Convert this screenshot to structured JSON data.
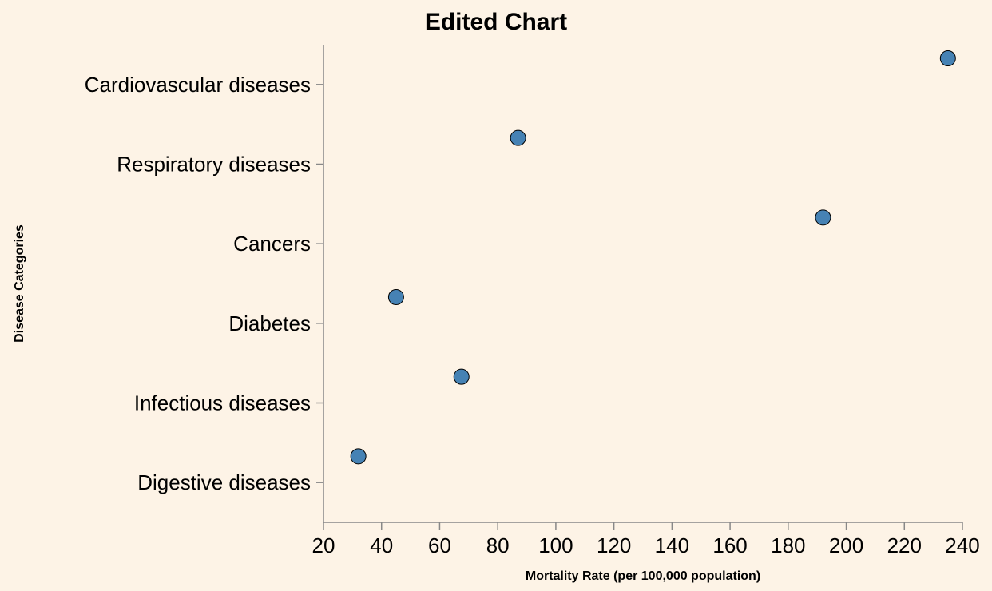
{
  "chart_data": {
    "type": "scatter",
    "title": "Edited Chart",
    "xlabel": "Mortality Rate (per 100,000 population)",
    "ylabel": "Disease Categories",
    "xlim": [
      20,
      240
    ],
    "xticks": [
      20,
      40,
      60,
      80,
      100,
      120,
      140,
      160,
      180,
      200,
      220,
      240
    ],
    "categories": [
      "Cardiovascular diseases",
      "Respiratory diseases",
      "Cancers",
      "Diabetes",
      "Infectious diseases",
      "Digestive diseases"
    ],
    "values": [
      235,
      87,
      192,
      45,
      67.5,
      32
    ],
    "point_color": "#4682b4",
    "background": "#fdf3e6",
    "grid": false
  }
}
